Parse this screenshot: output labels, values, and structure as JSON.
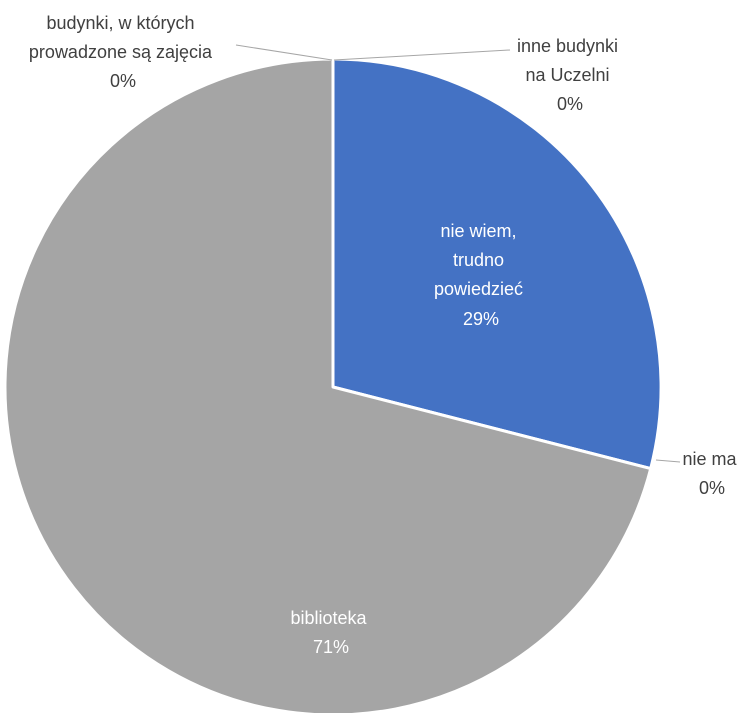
{
  "chart_data": {
    "type": "pie",
    "title": "",
    "start_angle_deg": 0,
    "direction": "clockwise",
    "legend": "none",
    "slices": [
      {
        "label": "inne budynki na Uczelni",
        "value": 0,
        "display": "0%",
        "color": "#4472c4",
        "lines": [
          "inne budynki",
          "na Uczelni",
          "0%"
        ]
      },
      {
        "label": "nie wiem, trudno powiedzieć",
        "value": 29,
        "display": "29%",
        "color": "#4472c4",
        "lines": [
          "nie wiem,",
          "trudno",
          "powiedzieć",
          "29%"
        ]
      },
      {
        "label": "nie ma",
        "value": 0,
        "display": "0%",
        "color": "#ed7d31",
        "lines": [
          "nie ma",
          "0%"
        ]
      },
      {
        "label": "biblioteka",
        "value": 71,
        "display": "71%",
        "color": "#a5a5a5",
        "lines": [
          "biblioteka",
          "71%"
        ]
      },
      {
        "label": "budynki, w których prowadzone są zajęcia",
        "value": 0,
        "display": "0%",
        "color": "#ffc000",
        "lines": [
          "budynki, w których",
          "prowadzone są zajęcia",
          "0%"
        ]
      }
    ]
  }
}
